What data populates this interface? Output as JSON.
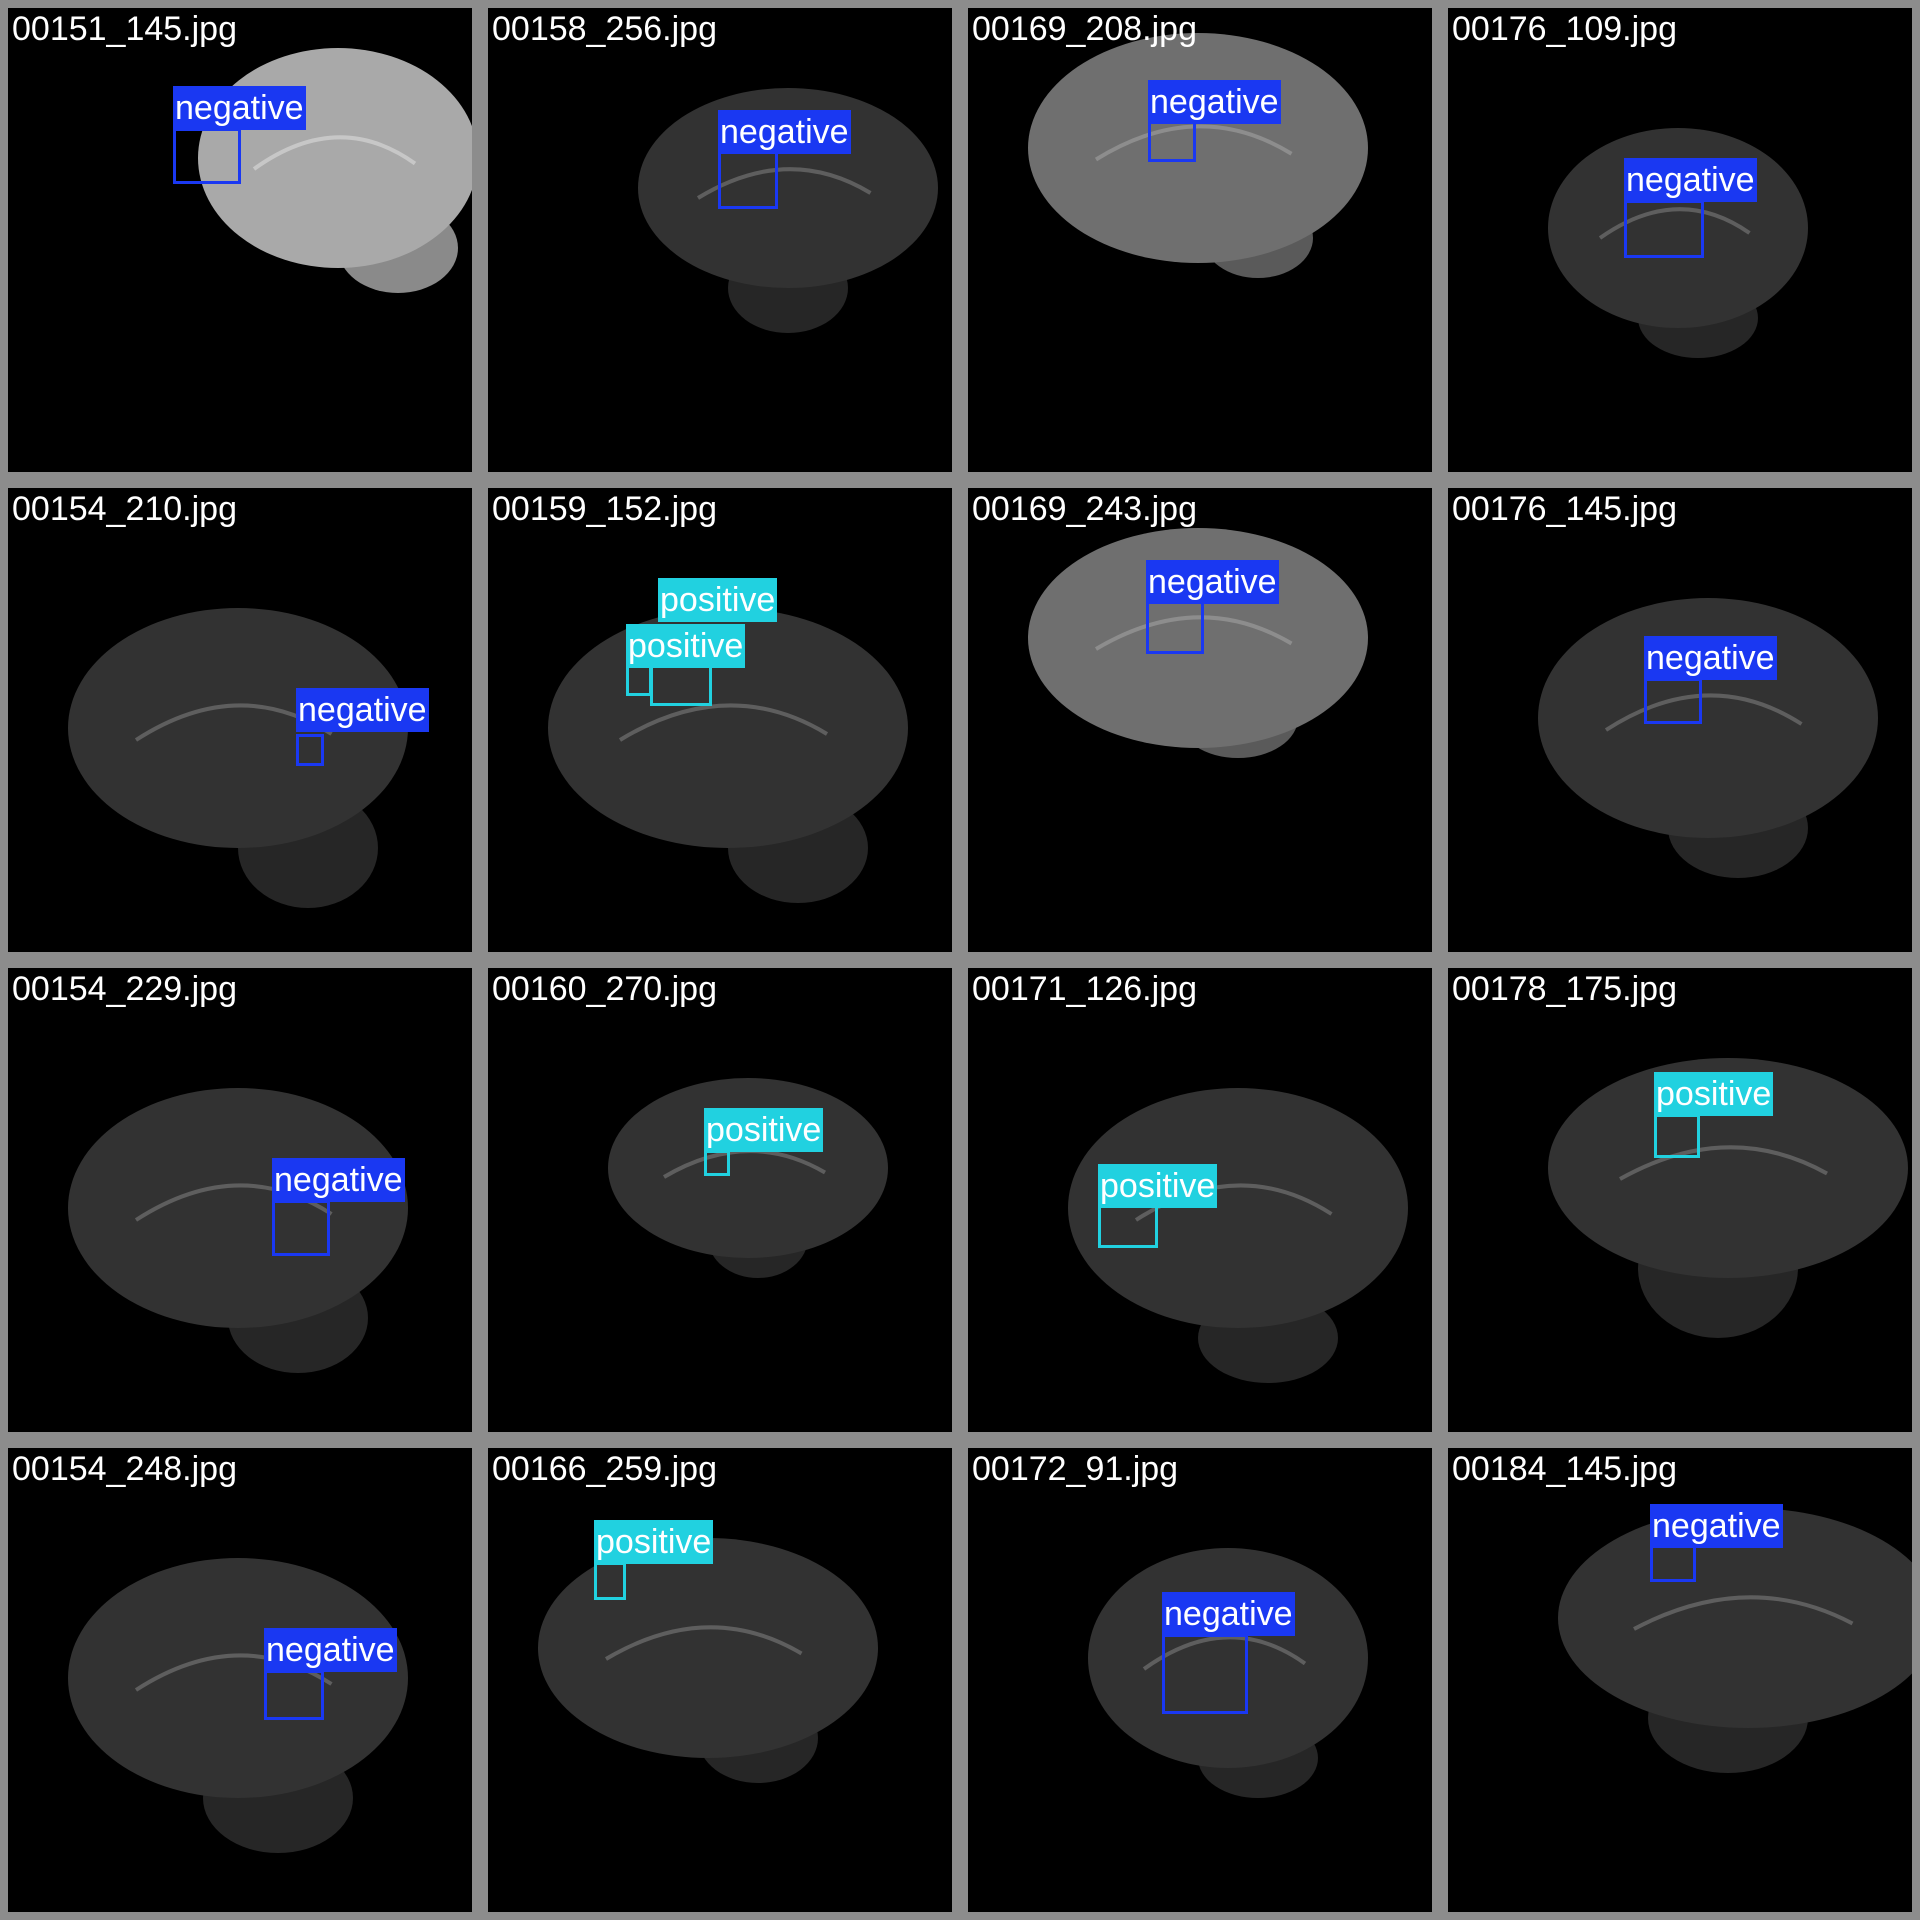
{
  "colors": {
    "negative": "#1a38f2",
    "positive": "#21d1e0",
    "tile_border": "#8c8c8c"
  },
  "tiles": [
    {
      "file": "00151_145.jpg",
      "brightness": "bright",
      "detections": [
        {
          "label": "negative"
        }
      ]
    },
    {
      "file": "00158_256.jpg",
      "brightness": "dark",
      "detections": [
        {
          "label": "negative"
        }
      ]
    },
    {
      "file": "00169_208.jpg",
      "brightness": "mid",
      "detections": [
        {
          "label": "negative"
        }
      ]
    },
    {
      "file": "00176_109.jpg",
      "brightness": "dark",
      "detections": [
        {
          "label": "negative"
        }
      ]
    },
    {
      "file": "00154_210.jpg",
      "brightness": "dark",
      "detections": [
        {
          "label": "negative"
        }
      ]
    },
    {
      "file": "00159_152.jpg",
      "brightness": "dark",
      "detections": [
        {
          "label": "positive"
        },
        {
          "label": "positive"
        }
      ]
    },
    {
      "file": "00169_243.jpg",
      "brightness": "mid",
      "detections": [
        {
          "label": "negative"
        }
      ]
    },
    {
      "file": "00176_145.jpg",
      "brightness": "dark",
      "detections": [
        {
          "label": "negative"
        }
      ]
    },
    {
      "file": "00154_229.jpg",
      "brightness": "dark",
      "detections": [
        {
          "label": "negative"
        }
      ]
    },
    {
      "file": "00160_270.jpg",
      "brightness": "dark",
      "detections": [
        {
          "label": "positive"
        }
      ]
    },
    {
      "file": "00171_126.jpg",
      "brightness": "dark",
      "detections": [
        {
          "label": "positive"
        }
      ]
    },
    {
      "file": "00178_175.jpg",
      "brightness": "dark",
      "detections": [
        {
          "label": "positive"
        }
      ]
    },
    {
      "file": "00154_248.jpg",
      "brightness": "dark",
      "detections": [
        {
          "label": "negative"
        }
      ]
    },
    {
      "file": "00166_259.jpg",
      "brightness": "dark",
      "detections": [
        {
          "label": "positive"
        }
      ]
    },
    {
      "file": "00172_91.jpg",
      "brightness": "dark",
      "detections": [
        {
          "label": "negative"
        }
      ]
    },
    {
      "file": "00184_145.jpg",
      "brightness": "dark",
      "detections": [
        {
          "label": "negative"
        }
      ]
    }
  ]
}
